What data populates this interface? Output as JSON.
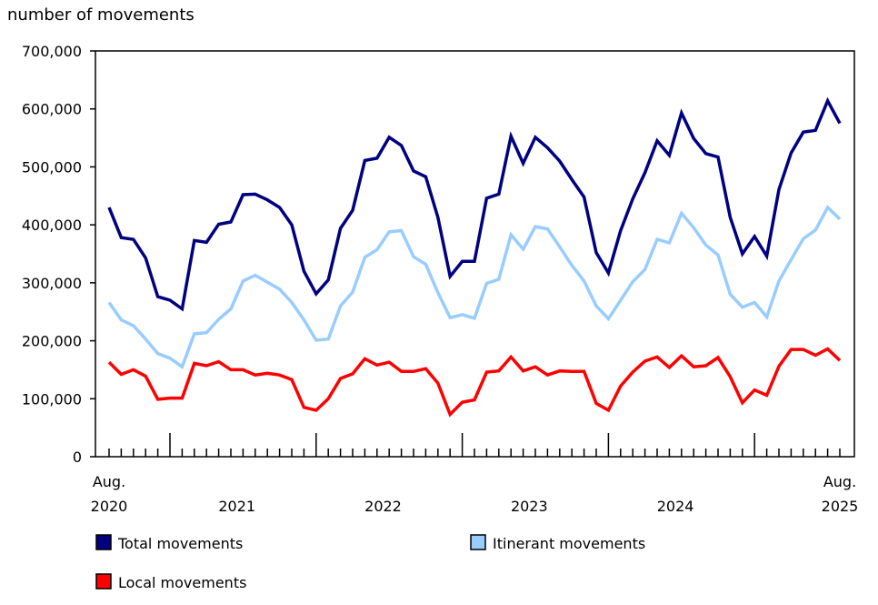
{
  "chart_data": {
    "type": "line",
    "ylabel": "number of movements",
    "ylim": [
      0,
      700000
    ],
    "yticks": [
      0,
      100000,
      200000,
      300000,
      400000,
      500000,
      600000,
      700000
    ],
    "ytick_labels": [
      "0",
      "100,000",
      "200,000",
      "300,000",
      "400,000",
      "500,000",
      "600,000",
      "700,000"
    ],
    "x_start": "2020-08",
    "x_end": "2025-08",
    "xtick_labels": [
      {
        "top": "Aug.",
        "bottom": "2020",
        "month_index": 0
      },
      {
        "top": "",
        "bottom": "2021",
        "month_index": 10.5
      },
      {
        "top": "",
        "bottom": "2022",
        "month_index": 22.5
      },
      {
        "top": "",
        "bottom": "2023",
        "month_index": 34.5
      },
      {
        "top": "",
        "bottom": "2024",
        "month_index": 46.5
      },
      {
        "top": "Aug.",
        "bottom": "2025",
        "month_index": 60
      }
    ],
    "legend_position": "bottom",
    "grid": false,
    "series": [
      {
        "name": "Total movements",
        "color": "#000080",
        "values": [
          430000,
          378000,
          375000,
          343000,
          276000,
          270000,
          255000,
          373000,
          370000,
          401000,
          405000,
          452000,
          453000,
          443000,
          430000,
          400000,
          320000,
          281000,
          305000,
          394000,
          425000,
          511000,
          515000,
          551000,
          537000,
          493000,
          483000,
          413000,
          311000,
          337000,
          337000,
          446000,
          453000,
          553000,
          506000,
          551000,
          533000,
          510000,
          478000,
          448000,
          352000,
          317000,
          390000,
          445000,
          490000,
          545000,
          520000,
          593000,
          549000,
          523000,
          517000,
          413000,
          350000,
          380000,
          346000,
          461000,
          524000,
          560000,
          563000,
          614000,
          575000
        ]
      },
      {
        "name": "Itinerant movements",
        "color": "#99ccff",
        "values": [
          266000,
          236000,
          226000,
          203000,
          178000,
          170000,
          155000,
          212000,
          214000,
          237000,
          255000,
          303000,
          313000,
          301000,
          289000,
          266000,
          236000,
          201000,
          203000,
          260000,
          284000,
          344000,
          357000,
          388000,
          390000,
          345000,
          332000,
          283000,
          240000,
          245000,
          239000,
          299000,
          306000,
          383000,
          358000,
          397000,
          393000,
          362000,
          330000,
          303000,
          260000,
          238000,
          270000,
          302000,
          323000,
          375000,
          369000,
          420000,
          395000,
          365000,
          348000,
          280000,
          258000,
          266000,
          241000,
          303000,
          340000,
          376000,
          391000,
          430000,
          410000
        ]
      },
      {
        "name": "Local movements",
        "color": "#ff0000",
        "values": [
          163000,
          142000,
          150000,
          139000,
          99000,
          101000,
          101000,
          161000,
          157000,
          164000,
          150000,
          150000,
          141000,
          144000,
          141000,
          133000,
          85000,
          80000,
          100000,
          135000,
          143000,
          169000,
          158000,
          163000,
          147000,
          147000,
          152000,
          127000,
          73000,
          94000,
          98000,
          146000,
          148000,
          172000,
          148000,
          155000,
          141000,
          148000,
          147000,
          147000,
          92000,
          80000,
          122000,
          146000,
          165000,
          172000,
          154000,
          174000,
          155000,
          157000,
          171000,
          138000,
          93000,
          115000,
          106000,
          156000,
          185000,
          185000,
          175000,
          186000,
          166000
        ]
      }
    ]
  }
}
